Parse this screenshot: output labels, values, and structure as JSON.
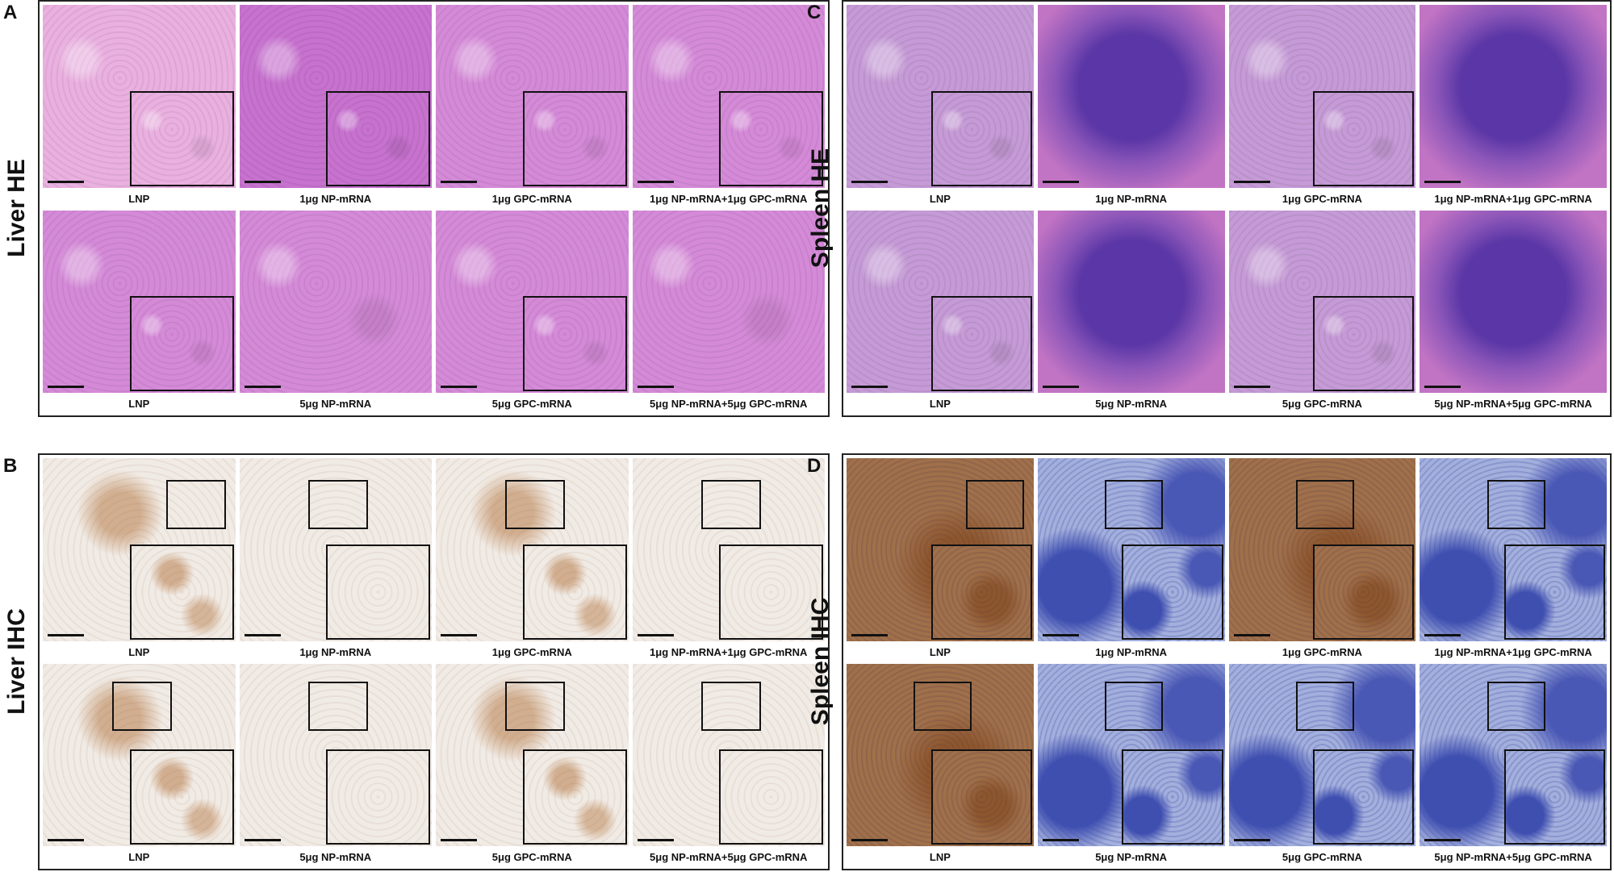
{
  "panels": [
    {
      "letter": "A",
      "label": "Liver HE",
      "rows": [
        [
          "LNP",
          "1μg NP-mRNA",
          "1μg GPC-mRNA",
          "1μg NP-mRNA+1μg GPC-mRNA"
        ],
        [
          "LNP",
          "5μg NP-mRNA",
          "5μg GPC-mRNA",
          "5μg NP-mRNA+5μg GPC-mRNA"
        ]
      ]
    },
    {
      "letter": "B",
      "label": "Liver IHC",
      "rows": [
        [
          "LNP",
          "1μg NP-mRNA",
          "1μg GPC-mRNA",
          "1μg NP-mRNA+1μg GPC-mRNA"
        ],
        [
          "LNP",
          "5μg NP-mRNA",
          "5μg GPC-mRNA",
          "5μg NP-mRNA+5μg GPC-mRNA"
        ]
      ]
    },
    {
      "letter": "C",
      "label": "Spleen HE",
      "rows": [
        [
          "LNP",
          "1μg NP-mRNA",
          "1μg GPC-mRNA",
          "1μg NP-mRNA+1μg GPC-mRNA"
        ],
        [
          "LNP",
          "5μg NP-mRNA",
          "5μg GPC-mRNA",
          "5μg NP-mRNA+5μg GPC-mRNA"
        ]
      ]
    },
    {
      "letter": "D",
      "label": "Spleen IHC",
      "rows": [
        [
          "LNP",
          "1μg NP-mRNA",
          "1μg GPC-mRNA",
          "1μg NP-mRNA+1μg GPC-mRNA"
        ],
        [
          "LNP",
          "5μg NP-mRNA",
          "5μg GPC-mRNA",
          "5μg NP-mRNA+5μg GPC-mRNA"
        ]
      ]
    }
  ]
}
